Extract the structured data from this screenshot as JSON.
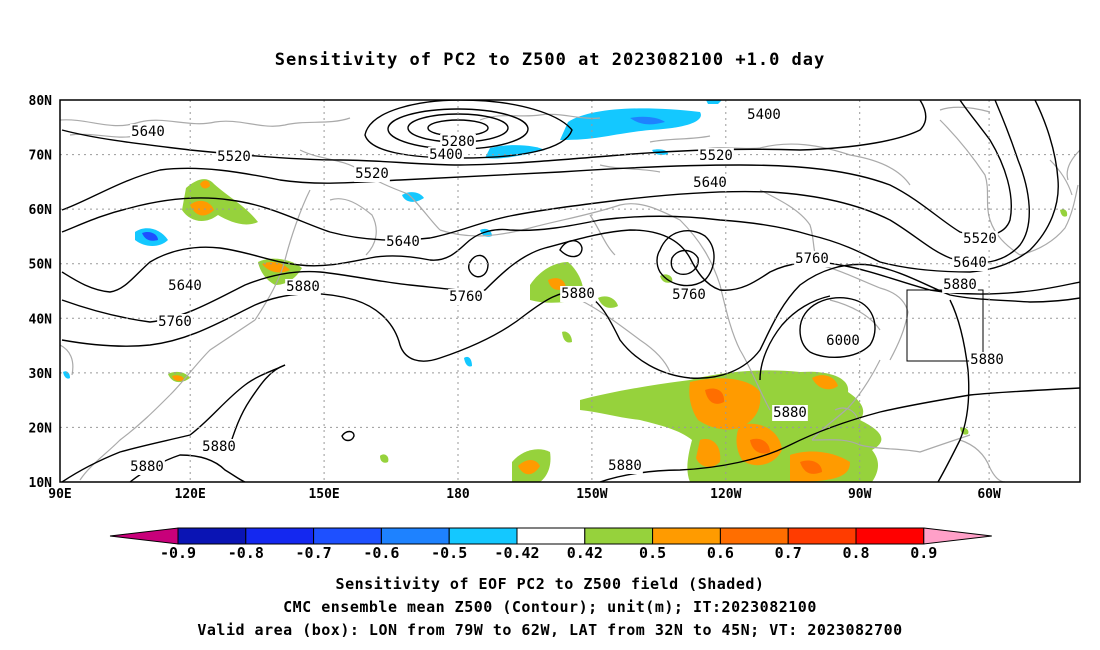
{
  "title": "Sensitivity of PC2 to Z500 at 2023082100 +1.0 day",
  "lat_labels": [
    "80N",
    "70N",
    "60N",
    "50N",
    "40N",
    "30N",
    "20N",
    "10N"
  ],
  "lon_labels": [
    "90E",
    "120E",
    "150E",
    "180",
    "150W",
    "120W",
    "90W",
    "60W"
  ],
  "contour_labels": [
    "5640",
    "5520",
    "5520",
    "5280",
    "5400",
    "5400",
    "5520",
    "5640",
    "5640",
    "5520",
    "5640",
    "5760",
    "5880",
    "5640",
    "5760",
    "5880",
    "5760",
    "5880",
    "5760",
    "6000",
    "5880",
    "5880",
    "5880",
    "5880",
    "5880"
  ],
  "colorbar": {
    "labels": [
      "-0.9",
      "-0.8",
      "-0.7",
      "-0.6",
      "-0.5",
      "-0.42",
      "0.42",
      "0.5",
      "0.6",
      "0.7",
      "0.8",
      "0.9"
    ],
    "colors": [
      "#c8007a",
      "#0a14b4",
      "#1428f0",
      "#1e50ff",
      "#1e82ff",
      "#14c8ff",
      "#ffffff",
      "#96d23c",
      "#ff9b00",
      "#ff6e00",
      "#ff3c00",
      "#ff0000",
      "#ffa0c8"
    ]
  },
  "caption": {
    "line1": "Sensitivity of EOF PC2 to Z500 field (Shaded)",
    "line2": "CMC ensemble mean Z500 (Contour); unit(m); IT:2023082100",
    "line3": "Valid area (box): LON from 79W to 62W, LAT from 32N to 45N; VT: 2023082700"
  },
  "valid_box": {
    "lon_w": -79,
    "lon_e": -62,
    "lat_s": 32,
    "lat_n": 45
  }
}
